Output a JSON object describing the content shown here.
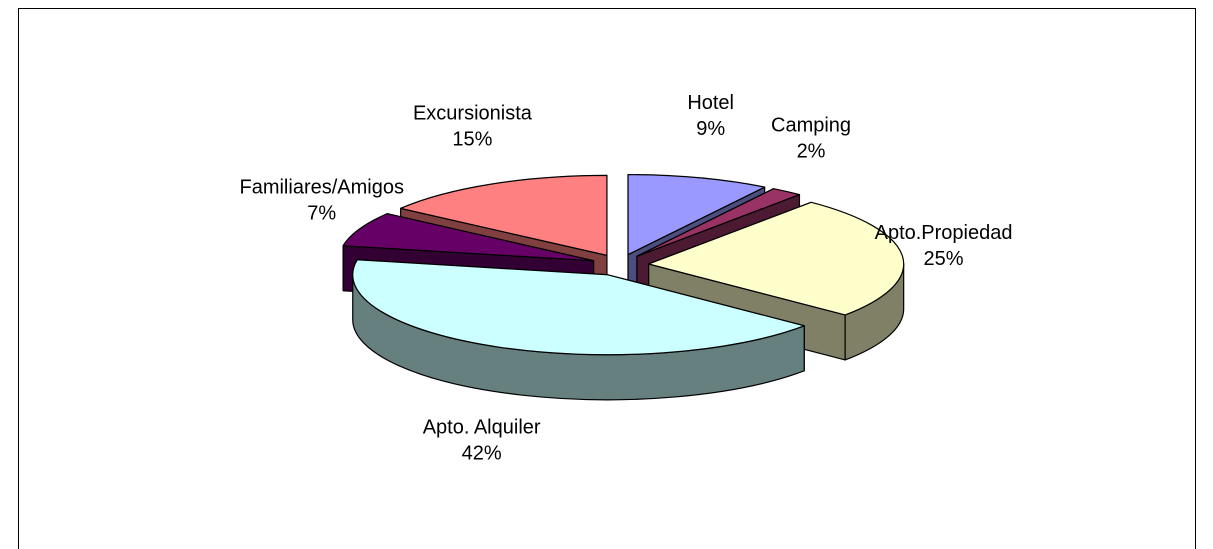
{
  "chart_data": {
    "type": "pie3d",
    "categories": [
      "Hotel",
      "Camping",
      "Apto.Propiedad",
      "Apto. Alquiler",
      "Familiares/Amigos",
      "Excursionista"
    ],
    "values": [
      9,
      2,
      25,
      42,
      7,
      15
    ],
    "value_labels": [
      "9%",
      "2%",
      "25%",
      "42%",
      "7%",
      "15%"
    ],
    "colors": [
      "#9999ff",
      "#993366",
      "#ffffcc",
      "#ccffff",
      "#660066",
      "#ff8080"
    ]
  }
}
